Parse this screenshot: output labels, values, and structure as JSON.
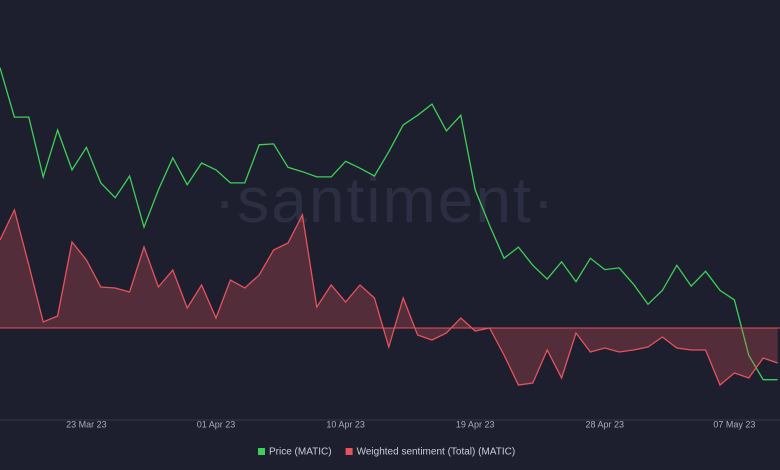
{
  "chart_data": {
    "type": "line",
    "watermark": "·santiment·",
    "categories": [
      null,
      null,
      null,
      null,
      null,
      null,
      "23 Mar 23",
      null,
      null,
      null,
      null,
      null,
      null,
      null,
      null,
      "01 Apr 23",
      null,
      null,
      null,
      null,
      null,
      null,
      null,
      null,
      "10 Apr 23",
      null,
      null,
      null,
      null,
      null,
      null,
      null,
      null,
      "19 Apr 23",
      null,
      null,
      null,
      null,
      null,
      null,
      null,
      null,
      "28 Apr 23",
      null,
      null,
      null,
      null,
      null,
      null,
      null,
      null,
      "07 May 23",
      null,
      null,
      null
    ],
    "ylim": [
      -0.82,
      3.08
    ],
    "y2lim": [
      0.8,
      1.25
    ],
    "series": [
      {
        "name": "Price (MATIC)",
        "color": "#3ecf57",
        "axis": "y2",
        "values": [
          1.195,
          1.138,
          1.138,
          1.069,
          1.123,
          1.077,
          1.103,
          1.062,
          1.045,
          1.07,
          1.011,
          1.054,
          1.091,
          1.06,
          1.085,
          1.077,
          1.062,
          1.062,
          1.106,
          1.107,
          1.08,
          1.075,
          1.069,
          1.069,
          1.087,
          1.079,
          1.07,
          1.098,
          1.129,
          1.14,
          1.153,
          1.122,
          1.14,
          1.054,
          1.013,
          0.975,
          0.988,
          0.967,
          0.951,
          0.971,
          0.948,
          0.975,
          0.962,
          0.964,
          0.945,
          0.922,
          0.938,
          0.967,
          0.943,
          0.96,
          0.938,
          0.927,
          0.863,
          0.835,
          0.835
        ]
      },
      {
        "name": "Weighted sentiment (Total) (MATIC)",
        "color": "#e5535b",
        "values": [
          0.88,
          1.18,
          0.63,
          0.06,
          0.12,
          0.86,
          0.68,
          0.41,
          0.4,
          0.36,
          0.81,
          0.41,
          0.58,
          0.2,
          0.43,
          0.1,
          0.48,
          0.4,
          0.53,
          0.78,
          0.85,
          1.13,
          0.21,
          0.43,
          0.26,
          0.43,
          0.3,
          -0.19,
          0.3,
          -0.07,
          -0.12,
          -0.05,
          0.1,
          -0.03,
          0.0,
          -0.27,
          -0.57,
          -0.55,
          -0.22,
          -0.5,
          -0.05,
          -0.24,
          -0.2,
          -0.24,
          -0.22,
          -0.19,
          -0.09,
          -0.2,
          -0.22,
          -0.22,
          -0.57,
          -0.45,
          -0.5,
          -0.3,
          -0.35
        ]
      }
    ]
  }
}
